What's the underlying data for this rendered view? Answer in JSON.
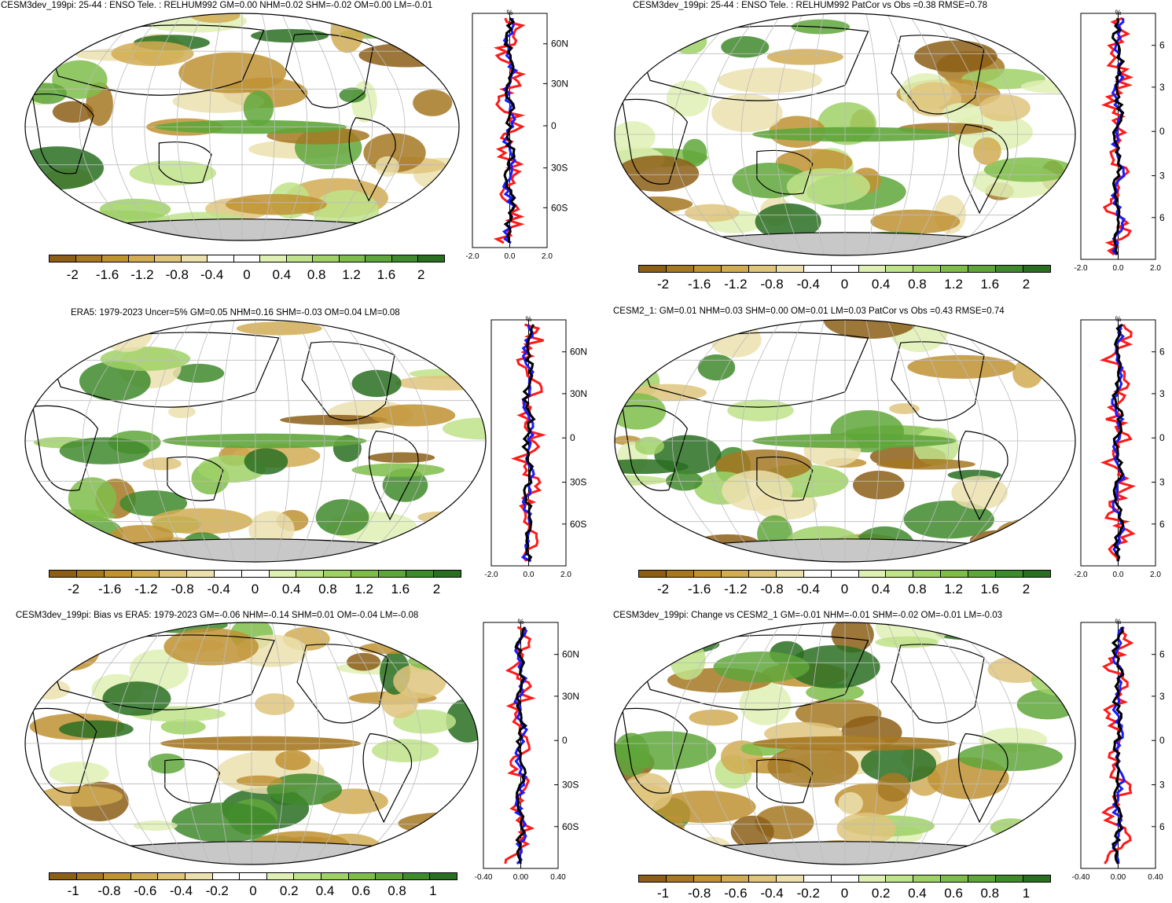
{
  "panels": [
    {
      "id": "p1",
      "title": "CESM3dev_199pi: 25-44 : ENSO Tele. : RELHUM992 GM=0.00 NHM=0.02 SHM=-0.02 OM=0.00 LM=-0.01",
      "profile_axis": "%",
      "profile_xticks": [
        "-2.0",
        "0.0",
        "2.0"
      ],
      "profile_lat_labels": [
        "60N",
        "30N",
        "0",
        "30S",
        "60S"
      ],
      "cbar": [
        "-2",
        "-1.6",
        "-1.2",
        "-0.8",
        "-0.4",
        "0",
        "0.4",
        "0.8",
        "1.2",
        "1.6",
        "2"
      ]
    },
    {
      "id": "p2",
      "title": "CESM3dev_199pi: 25-44 : ENSO Tele. : RELHUM992 PatCor vs Obs =0.38 RMSE=0.78",
      "profile_axis": "%",
      "profile_xticks": [
        "-2.0",
        "0.0",
        "2.0"
      ],
      "profile_lat_labels": [
        "6",
        "3",
        "0",
        "3",
        "6"
      ],
      "cbar": [
        "-2",
        "-1.6",
        "-1.2",
        "-0.8",
        "-0.4",
        "0",
        "0.4",
        "0.8",
        "1.2",
        "1.6",
        "2"
      ]
    },
    {
      "id": "p3",
      "title": "ERA5: 1979-2023 Uncer=5% GM=0.05 NHM=0.16 SHM=-0.03 OM=0.04 LM=0.08",
      "profile_axis": "%",
      "profile_xticks": [
        "-2.0",
        "0.0",
        "2.0"
      ],
      "profile_lat_labels": [
        "60N",
        "30N",
        "0",
        "30S",
        "60S"
      ],
      "cbar": [
        "-2",
        "-1.6",
        "-1.2",
        "-0.8",
        "-0.4",
        "0",
        "0.4",
        "0.8",
        "1.2",
        "1.6",
        "2"
      ]
    },
    {
      "id": "p4",
      "title": "CESM2_1: GM=0.01 NHM=0.03 SHM=0.00 OM=0.01 LM=0.03 PatCor vs Obs =0.43 RMSE=0.74",
      "profile_axis": "%",
      "profile_xticks": [
        "-2.0",
        "0.0",
        "2.0"
      ],
      "profile_lat_labels": [
        "6",
        "3",
        "0",
        "3",
        "6"
      ],
      "cbar": [
        "-2",
        "-1.6",
        "-1.2",
        "-0.8",
        "-0.4",
        "0",
        "0.4",
        "0.8",
        "1.2",
        "1.6",
        "2"
      ]
    },
    {
      "id": "p5",
      "title": "CESM3dev_199pi: Bias vs ERA5: 1979-2023 GM=-0.06 NHM=-0.14 SHM=0.01 OM=-0.04 LM=-0.08",
      "profile_axis": "%",
      "profile_xticks": [
        "-0.40",
        "0.00",
        "0.40"
      ],
      "profile_lat_labels": [
        "60N",
        "30N",
        "0",
        "30S",
        "60S"
      ],
      "cbar": [
        "-1",
        "-0.8",
        "-0.6",
        "-0.4",
        "-0.2",
        "0",
        "0.2",
        "0.4",
        "0.6",
        "0.8",
        "1"
      ]
    },
    {
      "id": "p6",
      "title": "CESM3dev_199pi: Change vs CESM2_1 GM=-0.01 NHM=-0.01 SHM=-0.02 OM=-0.01 LM=-0.03",
      "profile_axis": "%",
      "profile_xticks": [
        "-0.40",
        "0.00",
        "0.40"
      ],
      "profile_lat_labels": [
        "6",
        "3",
        "0",
        "3",
        "6"
      ],
      "cbar": [
        "-1",
        "-0.8",
        "-0.6",
        "-0.4",
        "-0.2",
        "0",
        "0.2",
        "0.4",
        "0.6",
        "0.8",
        "1"
      ]
    }
  ],
  "colors": {
    "brown_to_green": [
      "#8c5e16",
      "#a67822",
      "#bf9232",
      "#d1ac52",
      "#dfc47c",
      "#ece0ae",
      "#ffffff",
      "#ffffff",
      "#dff0b4",
      "#bfe38a",
      "#9fd166",
      "#7fbd4a",
      "#5fa63a",
      "#3f8a2c",
      "#2a6e22"
    ],
    "land_mask": "#c8c8c8",
    "profile_red": "#ff1a1a",
    "profile_blue": "#1a1aff",
    "profile_black": "#000000"
  }
}
